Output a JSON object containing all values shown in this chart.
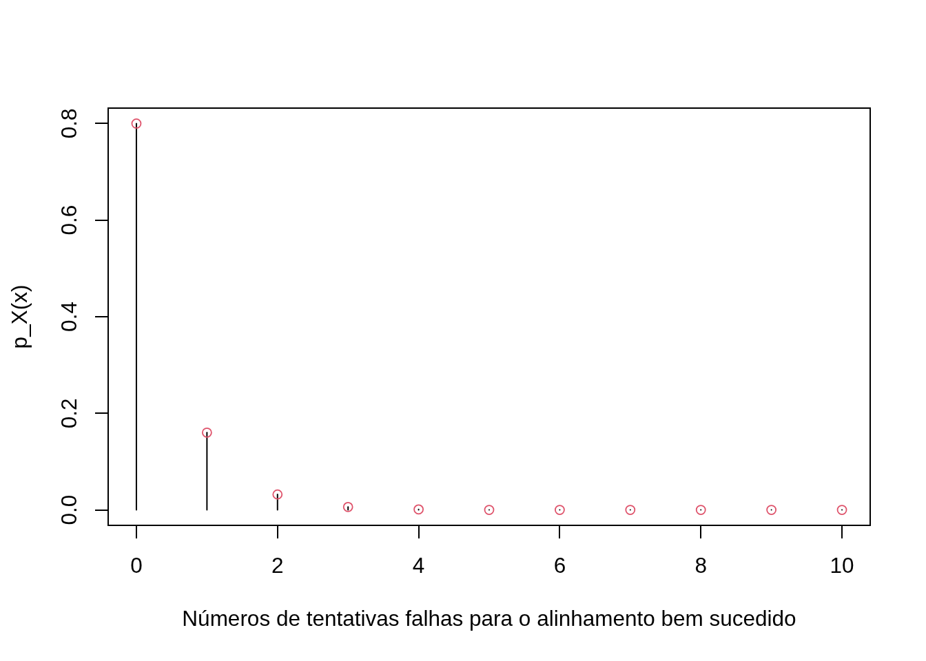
{
  "chart_data": {
    "type": "lollipop",
    "xlabel": "Números de tentativas falhas para o alinhamento bem sucedido",
    "ylabel": "p_X(x)",
    "x": [
      0,
      1,
      2,
      3,
      4,
      5,
      6,
      7,
      8,
      9,
      10
    ],
    "values": [
      0.8,
      0.16,
      0.032,
      0.006,
      0.001,
      0,
      0,
      0,
      0,
      0,
      0
    ],
    "color": "#df536b",
    "xlim": [
      -0.4,
      10.4
    ],
    "ylim": [
      -0.032,
      0.832
    ],
    "xticks": [
      0,
      2,
      4,
      6,
      8,
      10
    ],
    "yticks": [
      {
        "value": 0,
        "label": "0.0"
      },
      {
        "value": 0.2,
        "label": "0.2"
      },
      {
        "value": 0.4,
        "label": "0.4"
      },
      {
        "value": 0.6,
        "label": "0.6"
      },
      {
        "value": 0.8,
        "label": "0.8"
      }
    ],
    "marker": "circle"
  }
}
